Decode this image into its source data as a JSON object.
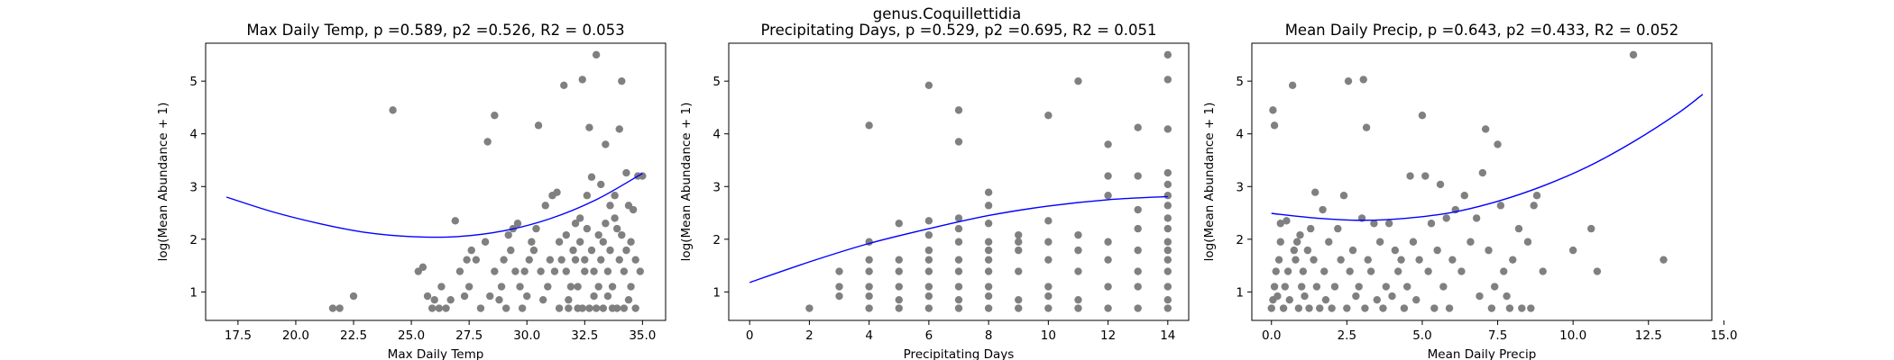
{
  "suptitle": "genus.Coquillettidia",
  "style": {
    "point_color": "#808080",
    "fit_color": "#0000ff"
  },
  "chart_data": [
    {
      "type": "scatter",
      "title": "Max Daily Temp, p =0.589, p2 =0.526, R2 = 0.053",
      "xlabel": "Max Daily Temp",
      "ylabel": "log(Mean Abundance + 1)",
      "xlim": [
        16.1,
        36.0
      ],
      "ylim": [
        0.46,
        5.72
      ],
      "xticks": [
        "17.5",
        "20.0",
        "22.5",
        "25.0",
        "27.5",
        "30.0",
        "32.5",
        "35.0"
      ],
      "yticks": [
        "1",
        "2",
        "3",
        "4",
        "5"
      ],
      "fit_curve": {
        "x": [
          17.0,
          19.0,
          21.0,
          23.0,
          25.0,
          27.0,
          29.0,
          31.0,
          33.0,
          35.0
        ],
        "y": [
          2.8,
          2.52,
          2.3,
          2.13,
          2.05,
          2.05,
          2.16,
          2.39,
          2.75,
          3.25
        ]
      },
      "points": [
        [
          21.6,
          0.69
        ],
        [
          21.9,
          0.69
        ],
        [
          22.5,
          0.92
        ],
        [
          24.2,
          4.45
        ],
        [
          25.3,
          1.39
        ],
        [
          25.5,
          1.47
        ],
        [
          25.7,
          0.92
        ],
        [
          25.9,
          0.69
        ],
        [
          26.0,
          0.85
        ],
        [
          26.2,
          0.69
        ],
        [
          26.3,
          1.1
        ],
        [
          26.5,
          0.69
        ],
        [
          26.7,
          0.85
        ],
        [
          26.9,
          2.35
        ],
        [
          27.1,
          1.39
        ],
        [
          27.3,
          0.92
        ],
        [
          27.4,
          1.61
        ],
        [
          27.5,
          1.1
        ],
        [
          27.6,
          1.79
        ],
        [
          27.8,
          1.61
        ],
        [
          28.0,
          0.69
        ],
        [
          28.2,
          1.95
        ],
        [
          28.3,
          3.85
        ],
        [
          28.4,
          0.92
        ],
        [
          28.6,
          1.39
        ],
        [
          28.6,
          4.35
        ],
        [
          28.8,
          0.85
        ],
        [
          28.9,
          1.1
        ],
        [
          29.0,
          1.61
        ],
        [
          29.1,
          0.69
        ],
        [
          29.2,
          2.08
        ],
        [
          29.3,
          1.79
        ],
        [
          29.4,
          2.2
        ],
        [
          29.5,
          1.39
        ],
        [
          29.6,
          2.3
        ],
        [
          29.7,
          1.1
        ],
        [
          29.8,
          0.69
        ],
        [
          29.9,
          1.39
        ],
        [
          30.0,
          0.92
        ],
        [
          30.1,
          1.61
        ],
        [
          30.2,
          1.95
        ],
        [
          30.3,
          1.79
        ],
        [
          30.4,
          2.2
        ],
        [
          30.5,
          4.16
        ],
        [
          30.6,
          1.39
        ],
        [
          30.7,
          0.85
        ],
        [
          30.8,
          2.64
        ],
        [
          30.9,
          1.1
        ],
        [
          31.0,
          1.61
        ],
        [
          31.1,
          2.83
        ],
        [
          31.2,
          1.39
        ],
        [
          31.3,
          2.89
        ],
        [
          31.4,
          0.69
        ],
        [
          31.4,
          1.95
        ],
        [
          31.5,
          1.61
        ],
        [
          31.6,
          4.92
        ],
        [
          31.7,
          2.08
        ],
        [
          31.7,
          1.39
        ],
        [
          31.8,
          0.69
        ],
        [
          31.8,
          0.85
        ],
        [
          31.9,
          1.1
        ],
        [
          32.0,
          1.79
        ],
        [
          32.1,
          2.3
        ],
        [
          32.1,
          1.61
        ],
        [
          32.2,
          0.69
        ],
        [
          32.2,
          1.1
        ],
        [
          32.3,
          2.4
        ],
        [
          32.3,
          1.95
        ],
        [
          32.4,
          5.03
        ],
        [
          32.4,
          0.69
        ],
        [
          32.5,
          1.39
        ],
        [
          32.5,
          1.61
        ],
        [
          32.6,
          2.2
        ],
        [
          32.6,
          2.83
        ],
        [
          32.7,
          0.69
        ],
        [
          32.7,
          4.12
        ],
        [
          32.8,
          3.18
        ],
        [
          32.8,
          1.79
        ],
        [
          32.9,
          0.92
        ],
        [
          32.9,
          1.39
        ],
        [
          33.0,
          5.5
        ],
        [
          33.0,
          0.69
        ],
        [
          33.1,
          2.08
        ],
        [
          33.1,
          1.1
        ],
        [
          33.2,
          3.04
        ],
        [
          33.2,
          1.61
        ],
        [
          33.3,
          0.69
        ],
        [
          33.3,
          1.95
        ],
        [
          33.4,
          2.3
        ],
        [
          33.4,
          3.8
        ],
        [
          33.5,
          0.92
        ],
        [
          33.5,
          1.39
        ],
        [
          33.6,
          2.64
        ],
        [
          33.6,
          1.79
        ],
        [
          33.7,
          0.69
        ],
        [
          33.7,
          1.1
        ],
        [
          33.8,
          2.83
        ],
        [
          33.8,
          2.4
        ],
        [
          33.9,
          2.2
        ],
        [
          33.9,
          0.69
        ],
        [
          34.0,
          4.09
        ],
        [
          34.0,
          1.61
        ],
        [
          34.1,
          5.0
        ],
        [
          34.1,
          2.08
        ],
        [
          34.2,
          0.69
        ],
        [
          34.2,
          1.39
        ],
        [
          34.3,
          3.26
        ],
        [
          34.3,
          1.79
        ],
        [
          34.4,
          2.64
        ],
        [
          34.4,
          0.85
        ],
        [
          34.5,
          1.95
        ],
        [
          34.5,
          1.1
        ],
        [
          34.6,
          2.56
        ],
        [
          34.7,
          1.61
        ],
        [
          34.7,
          0.69
        ],
        [
          34.8,
          3.2
        ],
        [
          34.9,
          1.39
        ],
        [
          35.0,
          3.2
        ]
      ]
    },
    {
      "type": "scatter",
      "title": "Precipitating Days, p =0.529, p2 =0.695, R2 = 0.051",
      "xlabel": "Precipitating Days",
      "ylabel": "log(Mean Abundance + 1)",
      "xlim": [
        -0.7,
        14.7
      ],
      "ylim": [
        0.46,
        5.72
      ],
      "xticks": [
        "0",
        "2",
        "4",
        "6",
        "8",
        "10",
        "12",
        "14"
      ],
      "yticks": [
        "1",
        "2",
        "3",
        "4",
        "5"
      ],
      "fit_curve": {
        "x": [
          0,
          2,
          4,
          6,
          8,
          10,
          12,
          14
        ],
        "y": [
          1.18,
          1.57,
          1.92,
          2.2,
          2.45,
          2.63,
          2.75,
          2.81
        ]
      },
      "points": [
        [
          2,
          0.69
        ],
        [
          3,
          0.92
        ],
        [
          3,
          1.1
        ],
        [
          3,
          1.39
        ],
        [
          4,
          0.69
        ],
        [
          4,
          0.92
        ],
        [
          4,
          1.1
        ],
        [
          4,
          1.39
        ],
        [
          4,
          1.61
        ],
        [
          4,
          1.95
        ],
        [
          4,
          4.16
        ],
        [
          5,
          0.69
        ],
        [
          5,
          0.85
        ],
        [
          5,
          1.1
        ],
        [
          5,
          1.39
        ],
        [
          5,
          1.61
        ],
        [
          5,
          2.3
        ],
        [
          6,
          0.69
        ],
        [
          6,
          0.92
        ],
        [
          6,
          1.1
        ],
        [
          6,
          1.39
        ],
        [
          6,
          1.61
        ],
        [
          6,
          1.79
        ],
        [
          6,
          2.08
        ],
        [
          6,
          2.35
        ],
        [
          6,
          4.92
        ],
        [
          7,
          0.69
        ],
        [
          7,
          0.85
        ],
        [
          7,
          1.1
        ],
        [
          7,
          1.39
        ],
        [
          7,
          1.61
        ],
        [
          7,
          1.95
        ],
        [
          7,
          2.2
        ],
        [
          7,
          2.4
        ],
        [
          7,
          3.85
        ],
        [
          7,
          4.45
        ],
        [
          8,
          0.69
        ],
        [
          8,
          0.92
        ],
        [
          8,
          1.1
        ],
        [
          8,
          1.39
        ],
        [
          8,
          1.61
        ],
        [
          8,
          1.79
        ],
        [
          8,
          1.95
        ],
        [
          8,
          2.3
        ],
        [
          8,
          2.64
        ],
        [
          8,
          2.89
        ],
        [
          9,
          0.69
        ],
        [
          9,
          0.85
        ],
        [
          9,
          1.39
        ],
        [
          9,
          1.79
        ],
        [
          9,
          1.95
        ],
        [
          9,
          2.08
        ],
        [
          10,
          0.69
        ],
        [
          10,
          0.92
        ],
        [
          10,
          1.1
        ],
        [
          10,
          1.61
        ],
        [
          10,
          1.95
        ],
        [
          10,
          2.35
        ],
        [
          10,
          4.35
        ],
        [
          11,
          0.69
        ],
        [
          11,
          0.85
        ],
        [
          11,
          1.39
        ],
        [
          11,
          1.79
        ],
        [
          11,
          2.08
        ],
        [
          11,
          5.0
        ],
        [
          12,
          0.69
        ],
        [
          12,
          1.1
        ],
        [
          12,
          1.61
        ],
        [
          12,
          1.95
        ],
        [
          12,
          2.83
        ],
        [
          12,
          3.2
        ],
        [
          12,
          3.8
        ],
        [
          13,
          0.69
        ],
        [
          13,
          1.1
        ],
        [
          13,
          1.39
        ],
        [
          13,
          1.79
        ],
        [
          13,
          2.2
        ],
        [
          13,
          2.56
        ],
        [
          13,
          3.2
        ],
        [
          13,
          4.12
        ],
        [
          14,
          0.69
        ],
        [
          14,
          0.85
        ],
        [
          14,
          1.1
        ],
        [
          14,
          1.39
        ],
        [
          14,
          1.61
        ],
        [
          14,
          1.79
        ],
        [
          14,
          1.95
        ],
        [
          14,
          2.2
        ],
        [
          14,
          2.4
        ],
        [
          14,
          2.64
        ],
        [
          14,
          2.83
        ],
        [
          14,
          3.04
        ],
        [
          14,
          3.26
        ],
        [
          14,
          4.09
        ],
        [
          14,
          5.03
        ],
        [
          14,
          5.5
        ]
      ]
    },
    {
      "type": "scatter",
      "title": "Mean Daily Precip, p =0.643, p2 =0.433, R2 = 0.052",
      "xlabel": "Mean Daily Precip",
      "ylabel": "log(Mean Abundance + 1)",
      "xlim": [
        -0.65,
        14.6
      ],
      "ylim": [
        0.46,
        5.72
      ],
      "xticks": [
        "0.0",
        "2.5",
        "5.0",
        "7.5",
        "10.0",
        "12.5",
        "15.0"
      ],
      "yticks": [
        "1",
        "2",
        "3",
        "4",
        "5"
      ],
      "fit_curve": {
        "x": [
          0.0,
          1.5,
          3.0,
          4.5,
          6.0,
          7.5,
          9.0,
          10.5,
          12.0,
          13.5,
          14.3
        ],
        "y": [
          2.49,
          2.4,
          2.36,
          2.4,
          2.51,
          2.72,
          3.01,
          3.38,
          3.85,
          4.4,
          4.75
        ]
      },
      "points": [
        [
          0.0,
          0.69
        ],
        [
          0.05,
          0.85
        ],
        [
          0.1,
          1.1
        ],
        [
          0.15,
          1.39
        ],
        [
          0.2,
          0.92
        ],
        [
          0.25,
          1.61
        ],
        [
          0.3,
          2.3
        ],
        [
          0.05,
          4.45
        ],
        [
          0.1,
          4.16
        ],
        [
          0.3,
          1.95
        ],
        [
          0.4,
          0.69
        ],
        [
          0.45,
          1.1
        ],
        [
          0.5,
          2.35
        ],
        [
          0.55,
          1.39
        ],
        [
          0.6,
          0.85
        ],
        [
          0.7,
          4.92
        ],
        [
          0.75,
          1.79
        ],
        [
          0.8,
          1.61
        ],
        [
          0.85,
          1.95
        ],
        [
          0.9,
          0.69
        ],
        [
          0.95,
          2.08
        ],
        [
          1.0,
          1.1
        ],
        [
          1.05,
          1.39
        ],
        [
          1.1,
          0.92
        ],
        [
          1.2,
          1.79
        ],
        [
          1.25,
          0.69
        ],
        [
          1.3,
          2.2
        ],
        [
          1.4,
          1.61
        ],
        [
          1.45,
          2.89
        ],
        [
          1.5,
          1.1
        ],
        [
          1.6,
          0.69
        ],
        [
          1.7,
          2.56
        ],
        [
          1.75,
          1.39
        ],
        [
          1.8,
          0.85
        ],
        [
          1.9,
          1.95
        ],
        [
          2.0,
          0.69
        ],
        [
          2.1,
          1.1
        ],
        [
          2.2,
          2.2
        ],
        [
          2.3,
          1.61
        ],
        [
          2.4,
          2.83
        ],
        [
          2.5,
          0.69
        ],
        [
          2.55,
          5.0
        ],
        [
          2.6,
          1.39
        ],
        [
          2.7,
          1.79
        ],
        [
          2.8,
          0.92
        ],
        [
          2.9,
          1.1
        ],
        [
          3.0,
          2.4
        ],
        [
          3.05,
          5.03
        ],
        [
          3.1,
          0.69
        ],
        [
          3.15,
          4.12
        ],
        [
          3.2,
          1.61
        ],
        [
          3.3,
          1.39
        ],
        [
          3.4,
          2.3
        ],
        [
          3.5,
          0.85
        ],
        [
          3.6,
          1.95
        ],
        [
          3.7,
          0.69
        ],
        [
          3.8,
          1.1
        ],
        [
          3.9,
          2.3
        ],
        [
          4.0,
          0.92
        ],
        [
          4.1,
          1.79
        ],
        [
          4.2,
          1.39
        ],
        [
          4.3,
          1.61
        ],
        [
          4.4,
          0.69
        ],
        [
          4.5,
          1.1
        ],
        [
          4.6,
          3.2
        ],
        [
          4.7,
          1.95
        ],
        [
          4.8,
          0.85
        ],
        [
          4.9,
          1.61
        ],
        [
          5.0,
          4.35
        ],
        [
          5.1,
          3.2
        ],
        [
          5.2,
          1.39
        ],
        [
          5.3,
          2.3
        ],
        [
          5.4,
          0.69
        ],
        [
          5.5,
          1.79
        ],
        [
          5.6,
          3.04
        ],
        [
          5.7,
          1.1
        ],
        [
          5.8,
          2.4
        ],
        [
          5.9,
          0.69
        ],
        [
          6.0,
          1.61
        ],
        [
          6.1,
          2.56
        ],
        [
          6.3,
          1.39
        ],
        [
          6.4,
          2.83
        ],
        [
          6.6,
          1.95
        ],
        [
          6.8,
          2.4
        ],
        [
          6.9,
          0.92
        ],
        [
          7.0,
          3.26
        ],
        [
          7.1,
          4.09
        ],
        [
          7.2,
          1.79
        ],
        [
          7.3,
          0.69
        ],
        [
          7.4,
          1.1
        ],
        [
          7.5,
          3.8
        ],
        [
          7.6,
          2.64
        ],
        [
          7.7,
          1.39
        ],
        [
          7.8,
          0.92
        ],
        [
          7.9,
          0.69
        ],
        [
          8.0,
          1.61
        ],
        [
          8.2,
          2.2
        ],
        [
          8.3,
          0.69
        ],
        [
          8.5,
          1.95
        ],
        [
          8.6,
          0.69
        ],
        [
          8.7,
          2.64
        ],
        [
          8.8,
          2.83
        ],
        [
          9.0,
          1.39
        ],
        [
          10.0,
          1.79
        ],
        [
          10.6,
          2.2
        ],
        [
          10.8,
          1.39
        ],
        [
          12.0,
          5.5
        ],
        [
          13.0,
          1.61
        ]
      ]
    }
  ]
}
